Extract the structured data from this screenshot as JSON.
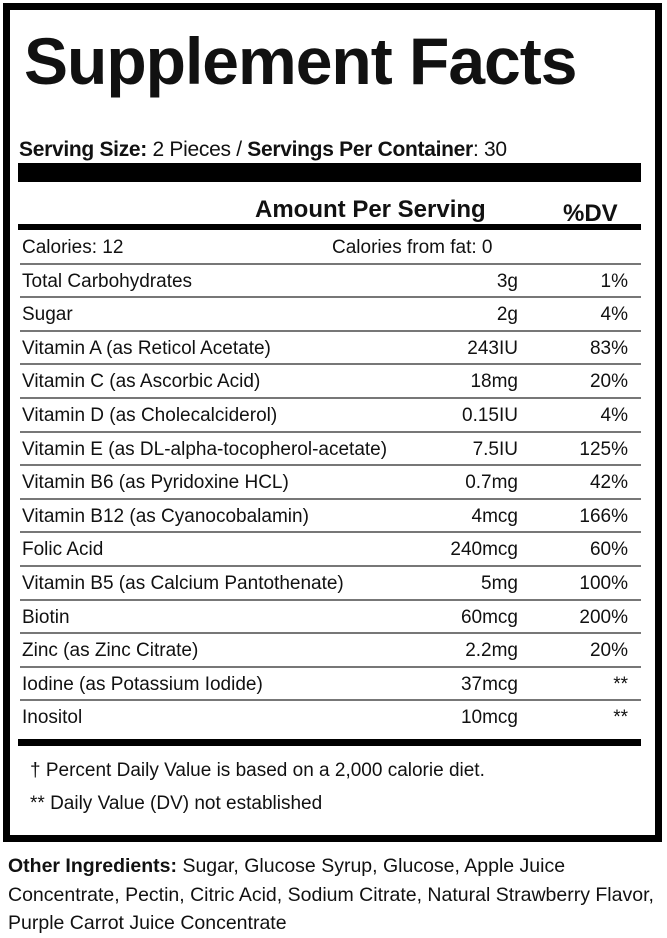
{
  "title": "Supplement Facts",
  "serving": {
    "size_label": "Serving Size:",
    "size_value": " 2 Pieces / ",
    "per_container_label": "Servings Per Container",
    "per_container_value": ": 30"
  },
  "header": {
    "amount": "Amount Per Serving",
    "dv": "%DV"
  },
  "calories": {
    "label": "Calories: 12",
    "from_fat": "Calories from fat: 0"
  },
  "rows": [
    {
      "name": "Total Carbohydrates",
      "amount": "3g",
      "dv": "1%"
    },
    {
      "name": "Sugar",
      "amount": "2g",
      "dv": "4%"
    },
    {
      "name": "Vitamin A (as Reticol Acetate)",
      "amount": "243IU",
      "dv": "83%"
    },
    {
      "name": "Vitamin C (as Ascorbic Acid)",
      "amount": "18mg",
      "dv": "20%"
    },
    {
      "name": "Vitamin D (as Cholecalciderol)",
      "amount": "0.15IU",
      "dv": "4%"
    },
    {
      "name": "Vitamin E (as DL-alpha-tocopherol-acetate)",
      "amount": "7.5IU",
      "dv": "125%"
    },
    {
      "name": "Vitamin B6 (as Pyridoxine HCL)",
      "amount": "0.7mg",
      "dv": "42%"
    },
    {
      "name": "Vitamin B12 (as Cyanocobalamin)",
      "amount": "4mcg",
      "dv": "166%"
    },
    {
      "name": "Folic Acid",
      "amount": "240mcg",
      "dv": "60%"
    },
    {
      "name": "Vitamin B5 (as Calcium Pantothenate)",
      "amount": "5mg",
      "dv": "100%"
    },
    {
      "name": "Biotin",
      "amount": "60mcg",
      "dv": "200%"
    },
    {
      "name": "Zinc (as Zinc Citrate)",
      "amount": "2.2mg",
      "dv": "20%"
    },
    {
      "name": "Iodine (as Potassium Iodide)",
      "amount": "37mcg",
      "dv": "**"
    },
    {
      "name": "Inositol",
      "amount": "10mcg",
      "dv": "**"
    }
  ],
  "footnotes": [
    "†  Percent Daily Value is based on a 2,000 calorie diet.",
    "** Daily Value (DV) not established"
  ],
  "other": {
    "label": "Other Ingredients:",
    "text": " Sugar, Glucose Syrup, Glucose, Apple Juice Concentrate, Pectin, Citric Acid, Sodium Citrate, Natural Strawberry Flavor, Purple Carrot Juice Concentrate"
  }
}
